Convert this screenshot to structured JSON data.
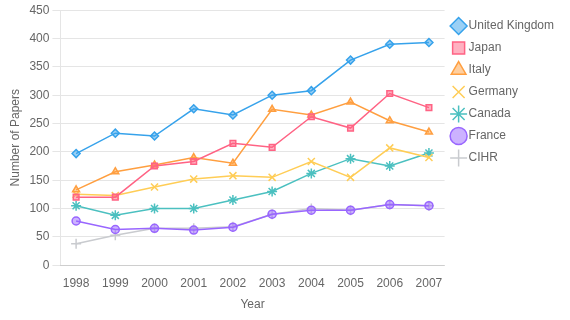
{
  "chart_data": {
    "type": "line",
    "x_label": "Year",
    "y_label": "Number of Papers",
    "x": [
      1998,
      1999,
      2000,
      2001,
      2002,
      2003,
      2004,
      2005,
      2006,
      2007
    ],
    "series": [
      {
        "name": "United Kingdom",
        "marker": "diamond",
        "values": [
          197,
          233,
          228,
          276,
          265,
          300,
          308,
          362,
          390,
          393
        ]
      },
      {
        "name": "Japan",
        "marker": "square",
        "values": [
          120,
          120,
          175,
          183,
          215,
          208,
          262,
          242,
          303,
          278
        ]
      },
      {
        "name": "Italy",
        "marker": "triangle",
        "values": [
          133,
          165,
          177,
          190,
          180,
          275,
          265,
          288,
          255,
          235
        ]
      },
      {
        "name": "Germany",
        "marker": "x",
        "values": [
          125,
          123,
          138,
          152,
          158,
          155,
          183,
          155,
          207,
          190
        ]
      },
      {
        "name": "Canada",
        "marker": "star",
        "values": [
          105,
          88,
          100,
          100,
          115,
          130,
          162,
          188,
          175,
          198
        ]
      },
      {
        "name": "France",
        "marker": "circle",
        "values": [
          78,
          63,
          65,
          62,
          67,
          90,
          97,
          97,
          107,
          105
        ]
      },
      {
        "name": "CIHR",
        "marker": "plus",
        "values": [
          38,
          53,
          65,
          65,
          68,
          90,
          100,
          97,
          107,
          105
        ]
      }
    ],
    "xlim": [
      1997.6,
      2007.4
    ],
    "xticks": [
      1998,
      1999,
      2000,
      2001,
      2002,
      2003,
      2004,
      2005,
      2006,
      2007
    ],
    "ylim": [
      0,
      450
    ],
    "yticks": [
      0,
      50,
      100,
      150,
      200,
      250,
      300,
      350,
      400,
      450
    ],
    "grid": "y",
    "legend": "right"
  }
}
